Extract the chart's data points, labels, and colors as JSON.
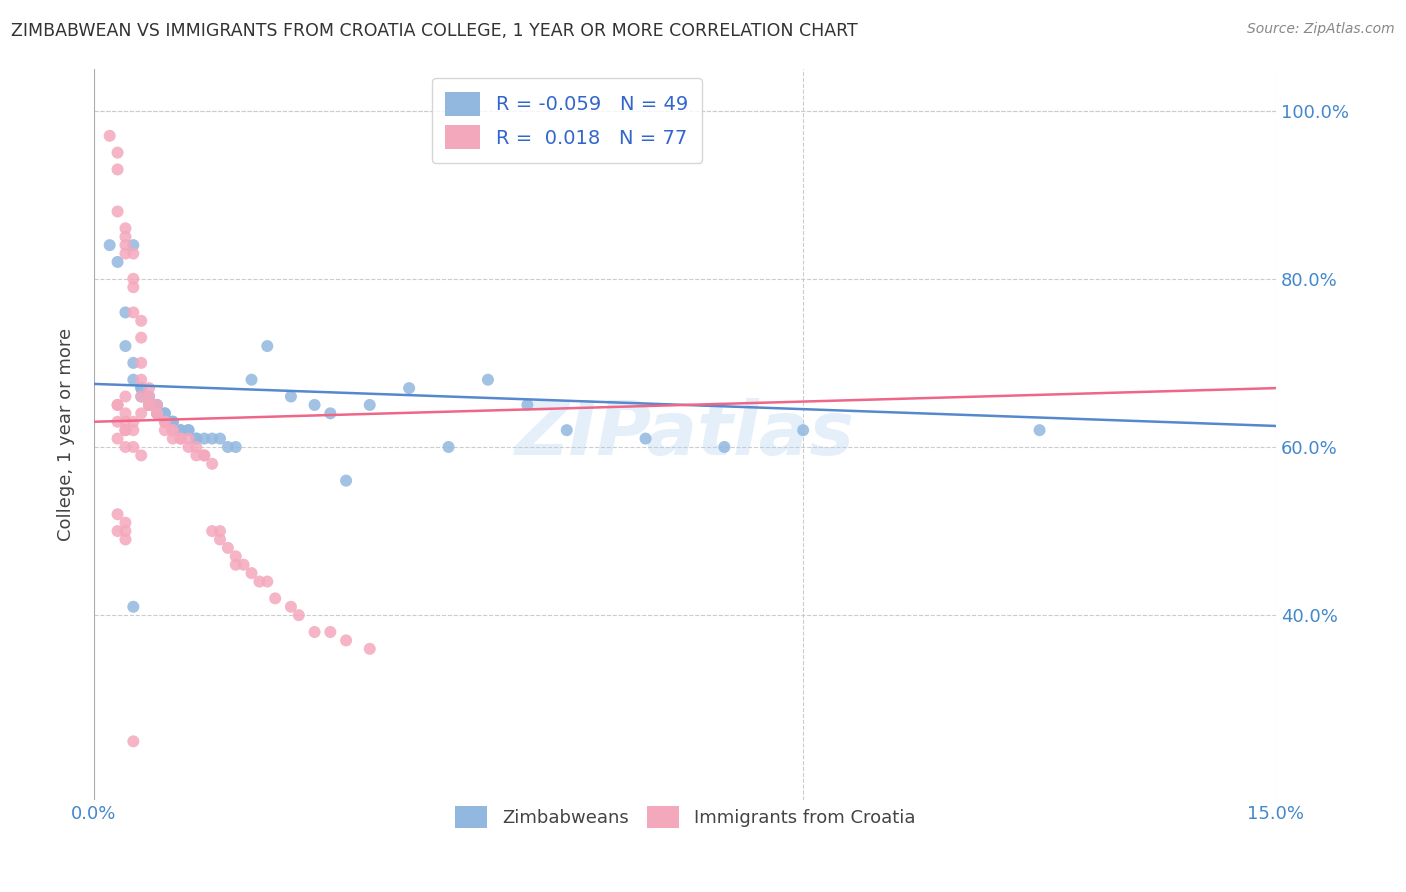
{
  "title": "ZIMBABWEAN VS IMMIGRANTS FROM CROATIA COLLEGE, 1 YEAR OR MORE CORRELATION CHART",
  "source": "Source: ZipAtlas.com",
  "ylabel": "College, 1 year or more",
  "xlim": [
    0.0,
    0.15
  ],
  "ylim": [
    0.18,
    1.05
  ],
  "yticks": [
    0.4,
    0.6,
    0.8,
    1.0
  ],
  "ytick_labels": [
    "40.0%",
    "60.0%",
    "80.0%",
    "100.0%"
  ],
  "blue_R": -0.059,
  "blue_N": 49,
  "pink_R": 0.018,
  "pink_N": 77,
  "blue_color": "#92B8E0",
  "pink_color": "#F4A8BC",
  "blue_line_color": "#5588CC",
  "pink_line_color": "#EE6688",
  "tick_color": "#4488CC",
  "legend_text_color": "#3366CC",
  "watermark": "ZIPatlas",
  "blue_scatter_x": [
    0.002,
    0.003,
    0.004,
    0.004,
    0.005,
    0.005,
    0.005,
    0.006,
    0.006,
    0.006,
    0.007,
    0.007,
    0.007,
    0.008,
    0.008,
    0.008,
    0.009,
    0.009,
    0.01,
    0.01,
    0.01,
    0.011,
    0.011,
    0.012,
    0.012,
    0.013,
    0.013,
    0.014,
    0.015,
    0.016,
    0.017,
    0.018,
    0.02,
    0.022,
    0.025,
    0.028,
    0.03,
    0.032,
    0.035,
    0.04,
    0.045,
    0.05,
    0.055,
    0.06,
    0.07,
    0.08,
    0.09,
    0.12,
    0.005
  ],
  "blue_scatter_y": [
    0.84,
    0.82,
    0.76,
    0.72,
    0.7,
    0.68,
    0.84,
    0.67,
    0.67,
    0.66,
    0.66,
    0.65,
    0.65,
    0.65,
    0.65,
    0.64,
    0.64,
    0.64,
    0.63,
    0.63,
    0.63,
    0.62,
    0.62,
    0.62,
    0.62,
    0.61,
    0.61,
    0.61,
    0.61,
    0.61,
    0.6,
    0.6,
    0.68,
    0.72,
    0.66,
    0.65,
    0.64,
    0.56,
    0.65,
    0.67,
    0.6,
    0.68,
    0.65,
    0.62,
    0.61,
    0.6,
    0.62,
    0.62,
    0.41
  ],
  "pink_scatter_x": [
    0.002,
    0.003,
    0.003,
    0.003,
    0.004,
    0.004,
    0.004,
    0.004,
    0.005,
    0.005,
    0.005,
    0.005,
    0.006,
    0.006,
    0.006,
    0.006,
    0.007,
    0.007,
    0.007,
    0.008,
    0.008,
    0.008,
    0.009,
    0.009,
    0.009,
    0.01,
    0.01,
    0.01,
    0.011,
    0.011,
    0.012,
    0.012,
    0.013,
    0.013,
    0.014,
    0.014,
    0.015,
    0.015,
    0.016,
    0.016,
    0.017,
    0.018,
    0.018,
    0.019,
    0.02,
    0.021,
    0.022,
    0.023,
    0.025,
    0.026,
    0.028,
    0.03,
    0.032,
    0.035,
    0.004,
    0.005,
    0.006,
    0.003,
    0.004,
    0.005,
    0.006,
    0.007,
    0.003,
    0.004,
    0.005,
    0.006,
    0.004,
    0.003,
    0.004,
    0.003,
    0.004,
    0.003,
    0.004,
    0.003,
    0.004,
    0.005,
    0.004
  ],
  "pink_scatter_y": [
    0.97,
    0.95,
    0.93,
    0.88,
    0.86,
    0.85,
    0.84,
    0.83,
    0.83,
    0.8,
    0.79,
    0.76,
    0.75,
    0.73,
    0.7,
    0.68,
    0.67,
    0.66,
    0.65,
    0.65,
    0.64,
    0.64,
    0.63,
    0.63,
    0.62,
    0.62,
    0.62,
    0.61,
    0.61,
    0.61,
    0.61,
    0.6,
    0.6,
    0.59,
    0.59,
    0.59,
    0.58,
    0.5,
    0.5,
    0.49,
    0.48,
    0.47,
    0.46,
    0.46,
    0.45,
    0.44,
    0.44,
    0.42,
    0.41,
    0.4,
    0.38,
    0.38,
    0.37,
    0.36,
    0.62,
    0.62,
    0.64,
    0.65,
    0.63,
    0.63,
    0.66,
    0.65,
    0.61,
    0.6,
    0.6,
    0.59,
    0.62,
    0.63,
    0.64,
    0.52,
    0.51,
    0.5,
    0.5,
    0.65,
    0.49,
    0.25,
    0.66
  ]
}
